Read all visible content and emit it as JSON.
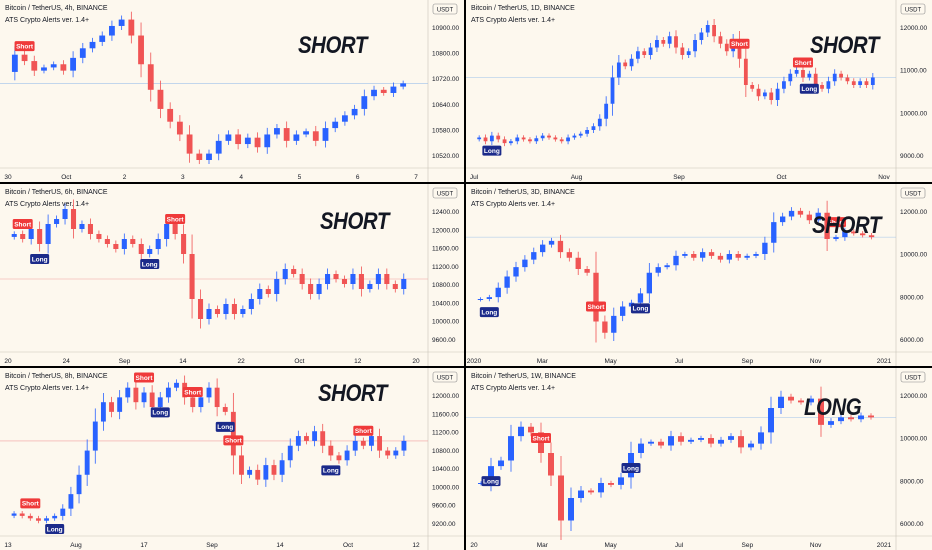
{
  "colors": {
    "background": "#fdf8ee",
    "up": "#2962ff",
    "down": "#f05454",
    "long_label": "#1b2a8a",
    "short_label": "#ef3a3a",
    "axis_text": "#131722",
    "divider": "#000000",
    "ref_line": "#9ec2ea",
    "ref_line_red": "#f2a0a0"
  },
  "chart_data": [
    {
      "type": "candlestick",
      "title": "Bitcoin / TetherUS, 4h, BINANCE",
      "subtitle": "ATS Crypto Alerts ver. 1.4+",
      "signal": "SHORT",
      "currency_badge": "USDT",
      "x_ticks": [
        "30",
        "Oct",
        "2",
        "3",
        "4",
        "5",
        "6",
        "7"
      ],
      "y_ticks": [
        "10900.00",
        "10800.00",
        "10720.00",
        "10640.00",
        "10580.00",
        "10520.00"
      ],
      "ylim": [
        10480,
        10950
      ],
      "closes": [
        10810,
        10790,
        10760,
        10770,
        10780,
        10760,
        10800,
        10830,
        10850,
        10870,
        10900,
        10920,
        10870,
        10780,
        10700,
        10640,
        10600,
        10560,
        10500,
        10480,
        10500,
        10540,
        10560,
        10530,
        10550,
        10520,
        10560,
        10580,
        10540,
        10560,
        10570,
        10540,
        10580,
        10600,
        10620,
        10640,
        10680,
        10700,
        10690,
        10710,
        10720
      ],
      "markers": [
        {
          "label": "Short",
          "index": 1,
          "side": "above"
        }
      ]
    },
    {
      "type": "candlestick",
      "title": "Bitcoin / TetherUS, 1D, BINANCE",
      "subtitle": "ATS Crypto Alerts ver. 1.4+",
      "signal": "SHORT",
      "currency_badge": "USDT",
      "x_ticks": [
        "Jul",
        "Aug",
        "Sep",
        "Oct",
        "Nov"
      ],
      "y_ticks": [
        "12000.00",
        "11000.00",
        "10000.00",
        "9000.00"
      ],
      "ylim": [
        8600,
        12600
      ],
      "closes": [
        9200,
        9100,
        9250,
        9150,
        9050,
        9100,
        9200,
        9150,
        9100,
        9180,
        9250,
        9200,
        9150,
        9100,
        9200,
        9250,
        9300,
        9400,
        9500,
        9700,
        10100,
        10800,
        11200,
        11100,
        11300,
        11500,
        11400,
        11600,
        11800,
        11700,
        11900,
        11600,
        11400,
        11500,
        11800,
        12000,
        12200,
        11900,
        11700,
        11500,
        11800,
        11300,
        10600,
        10500,
        10300,
        10400,
        10200,
        10500,
        10700,
        10900,
        11000,
        10800,
        10900,
        10600,
        10500,
        10700,
        10900,
        10800,
        10700,
        10600,
        10700,
        10600,
        10800
      ],
      "markers": [
        {
          "label": "Long",
          "index": 2,
          "side": "below"
        },
        {
          "label": "Short",
          "index": 41,
          "side": "above"
        },
        {
          "label": "Short",
          "index": 51,
          "side": "above"
        },
        {
          "label": "Long",
          "index": 52,
          "side": "below"
        }
      ]
    },
    {
      "type": "candlestick",
      "title": "Bitcoin / TetherUS, 6h, BINANCE",
      "subtitle": "ATS Crypto Alerts ver. 1.4+",
      "signal": "SHORT",
      "currency_badge": "USDT",
      "x_ticks": [
        "20",
        "24",
        "Sep",
        "14",
        "22",
        "Oct",
        "12",
        "20"
      ],
      "y_ticks": [
        "12400.00",
        "12000.00",
        "11600.00",
        "11200.00",
        "10800.00",
        "10400.00",
        "10000.00",
        "9600.00"
      ],
      "ylim": [
        9500,
        12500
      ],
      "closes": [
        11700,
        11600,
        11800,
        11500,
        11900,
        12000,
        12200,
        11800,
        11900,
        11700,
        11600,
        11500,
        11400,
        11600,
        11500,
        11300,
        11400,
        11600,
        11900,
        11700,
        11300,
        10400,
        10000,
        10200,
        10100,
        10300,
        10100,
        10200,
        10400,
        10600,
        10500,
        10800,
        11000,
        10900,
        10700,
        10500,
        10700,
        10900,
        10800,
        10700,
        10900,
        10600,
        10700,
        10900,
        10700,
        10600,
        10800
      ],
      "markers": [
        {
          "label": "Short",
          "index": 1,
          "side": "above"
        },
        {
          "label": "Long",
          "index": 3,
          "side": "below"
        },
        {
          "label": "Long",
          "index": 16,
          "side": "below"
        },
        {
          "label": "Short",
          "index": 19,
          "side": "above"
        }
      ]
    },
    {
      "type": "candlestick",
      "title": "Bitcoin / TetherUS, 3D, BINANCE",
      "subtitle": "ATS Crypto Alerts ver. 1.4+",
      "signal": "SHORT",
      "currency_badge": "USDT",
      "x_ticks": [
        "2020",
        "Mar",
        "May",
        "Jul",
        "Sep",
        "Nov",
        "2021"
      ],
      "y_ticks": [
        "12000.00",
        "10000.00",
        "8000.00",
        "6000.00"
      ],
      "ylim": [
        4800,
        12800
      ],
      "closes": [
        7200,
        7300,
        7800,
        8400,
        8900,
        9300,
        9700,
        10100,
        10300,
        9700,
        9400,
        8800,
        8600,
        6000,
        5400,
        6300,
        6800,
        7000,
        7500,
        8600,
        8900,
        9000,
        9500,
        9600,
        9400,
        9700,
        9500,
        9300,
        9600,
        9400,
        9500,
        9600,
        10200,
        11300,
        11600,
        11900,
        11700,
        11400,
        11800,
        10400,
        10500,
        10800,
        10700,
        10600,
        10500
      ],
      "markers": [
        {
          "label": "Long",
          "index": 1,
          "side": "below"
        },
        {
          "label": "Short",
          "index": 13,
          "side": "above"
        },
        {
          "label": "Long",
          "index": 18,
          "side": "below"
        },
        {
          "label": "Short",
          "index": 40,
          "side": "above"
        }
      ]
    },
    {
      "type": "candlestick",
      "title": "Bitcoin / TetherUS, 8h, BINANCE",
      "subtitle": "ATS Crypto Alerts ver. 1.4+",
      "signal": "SHORT",
      "currency_badge": "USDT",
      "x_ticks": [
        "13",
        "Aug",
        "17",
        "Sep",
        "14",
        "Oct",
        "12"
      ],
      "y_ticks": [
        "12000.00",
        "11600.00",
        "11200.00",
        "10800.00",
        "10400.00",
        "10000.00",
        "9600.00",
        "9200.00"
      ],
      "ylim": [
        9000,
        12100
      ],
      "closes": [
        9300,
        9250,
        9200,
        9150,
        9200,
        9250,
        9400,
        9700,
        10100,
        10600,
        11200,
        11600,
        11400,
        11700,
        11900,
        11600,
        11800,
        11500,
        11700,
        11900,
        12000,
        11700,
        11500,
        11700,
        11900,
        11500,
        11400,
        10500,
        10100,
        10200,
        10000,
        10300,
        10100,
        10400,
        10700,
        10900,
        10800,
        11000,
        10700,
        10500,
        10400,
        10600,
        10800,
        10700,
        10900,
        10600,
        10500,
        10600,
        10800
      ],
      "markers": [
        {
          "label": "Short",
          "index": 2,
          "side": "above"
        },
        {
          "label": "Long",
          "index": 5,
          "side": "below"
        },
        {
          "label": "Short",
          "index": 16,
          "side": "above"
        },
        {
          "label": "Long",
          "index": 18,
          "side": "below"
        },
        {
          "label": "Short",
          "index": 22,
          "side": "above"
        },
        {
          "label": "Long",
          "index": 26,
          "side": "below"
        },
        {
          "label": "Short",
          "index": 27,
          "side": "above"
        },
        {
          "label": "Long",
          "index": 39,
          "side": "below"
        },
        {
          "label": "Short",
          "index": 43,
          "side": "above"
        }
      ]
    },
    {
      "type": "candlestick",
      "title": "Bitcoin / TetherUS, 1W, BINANCE",
      "subtitle": "ATS Crypto Alerts ver. 1.4+",
      "signal": "LONG",
      "currency_badge": "USDT",
      "x_ticks": [
        "20",
        "Mar",
        "May",
        "Jul",
        "Sep",
        "Nov",
        "2021"
      ],
      "y_ticks": [
        "12000.00",
        "10000.00",
        "8000.00",
        "6000.00"
      ],
      "ylim": [
        4800,
        12800
      ],
      "closes": [
        7200,
        8100,
        8400,
        9700,
        10200,
        9900,
        8800,
        7600,
        5200,
        6400,
        6800,
        6700,
        7200,
        7100,
        7500,
        8800,
        9300,
        9400,
        9200,
        9700,
        9400,
        9500,
        9600,
        9300,
        9500,
        9700,
        9100,
        9300,
        9900,
        11200,
        11800,
        11600,
        11500,
        11700,
        10300,
        10500,
        10700,
        10600,
        10800,
        10700
      ],
      "markers": [
        {
          "label": "Long",
          "index": 1,
          "side": "below"
        },
        {
          "label": "Short",
          "index": 6,
          "side": "above"
        },
        {
          "label": "Long",
          "index": 15,
          "side": "below"
        }
      ]
    }
  ]
}
